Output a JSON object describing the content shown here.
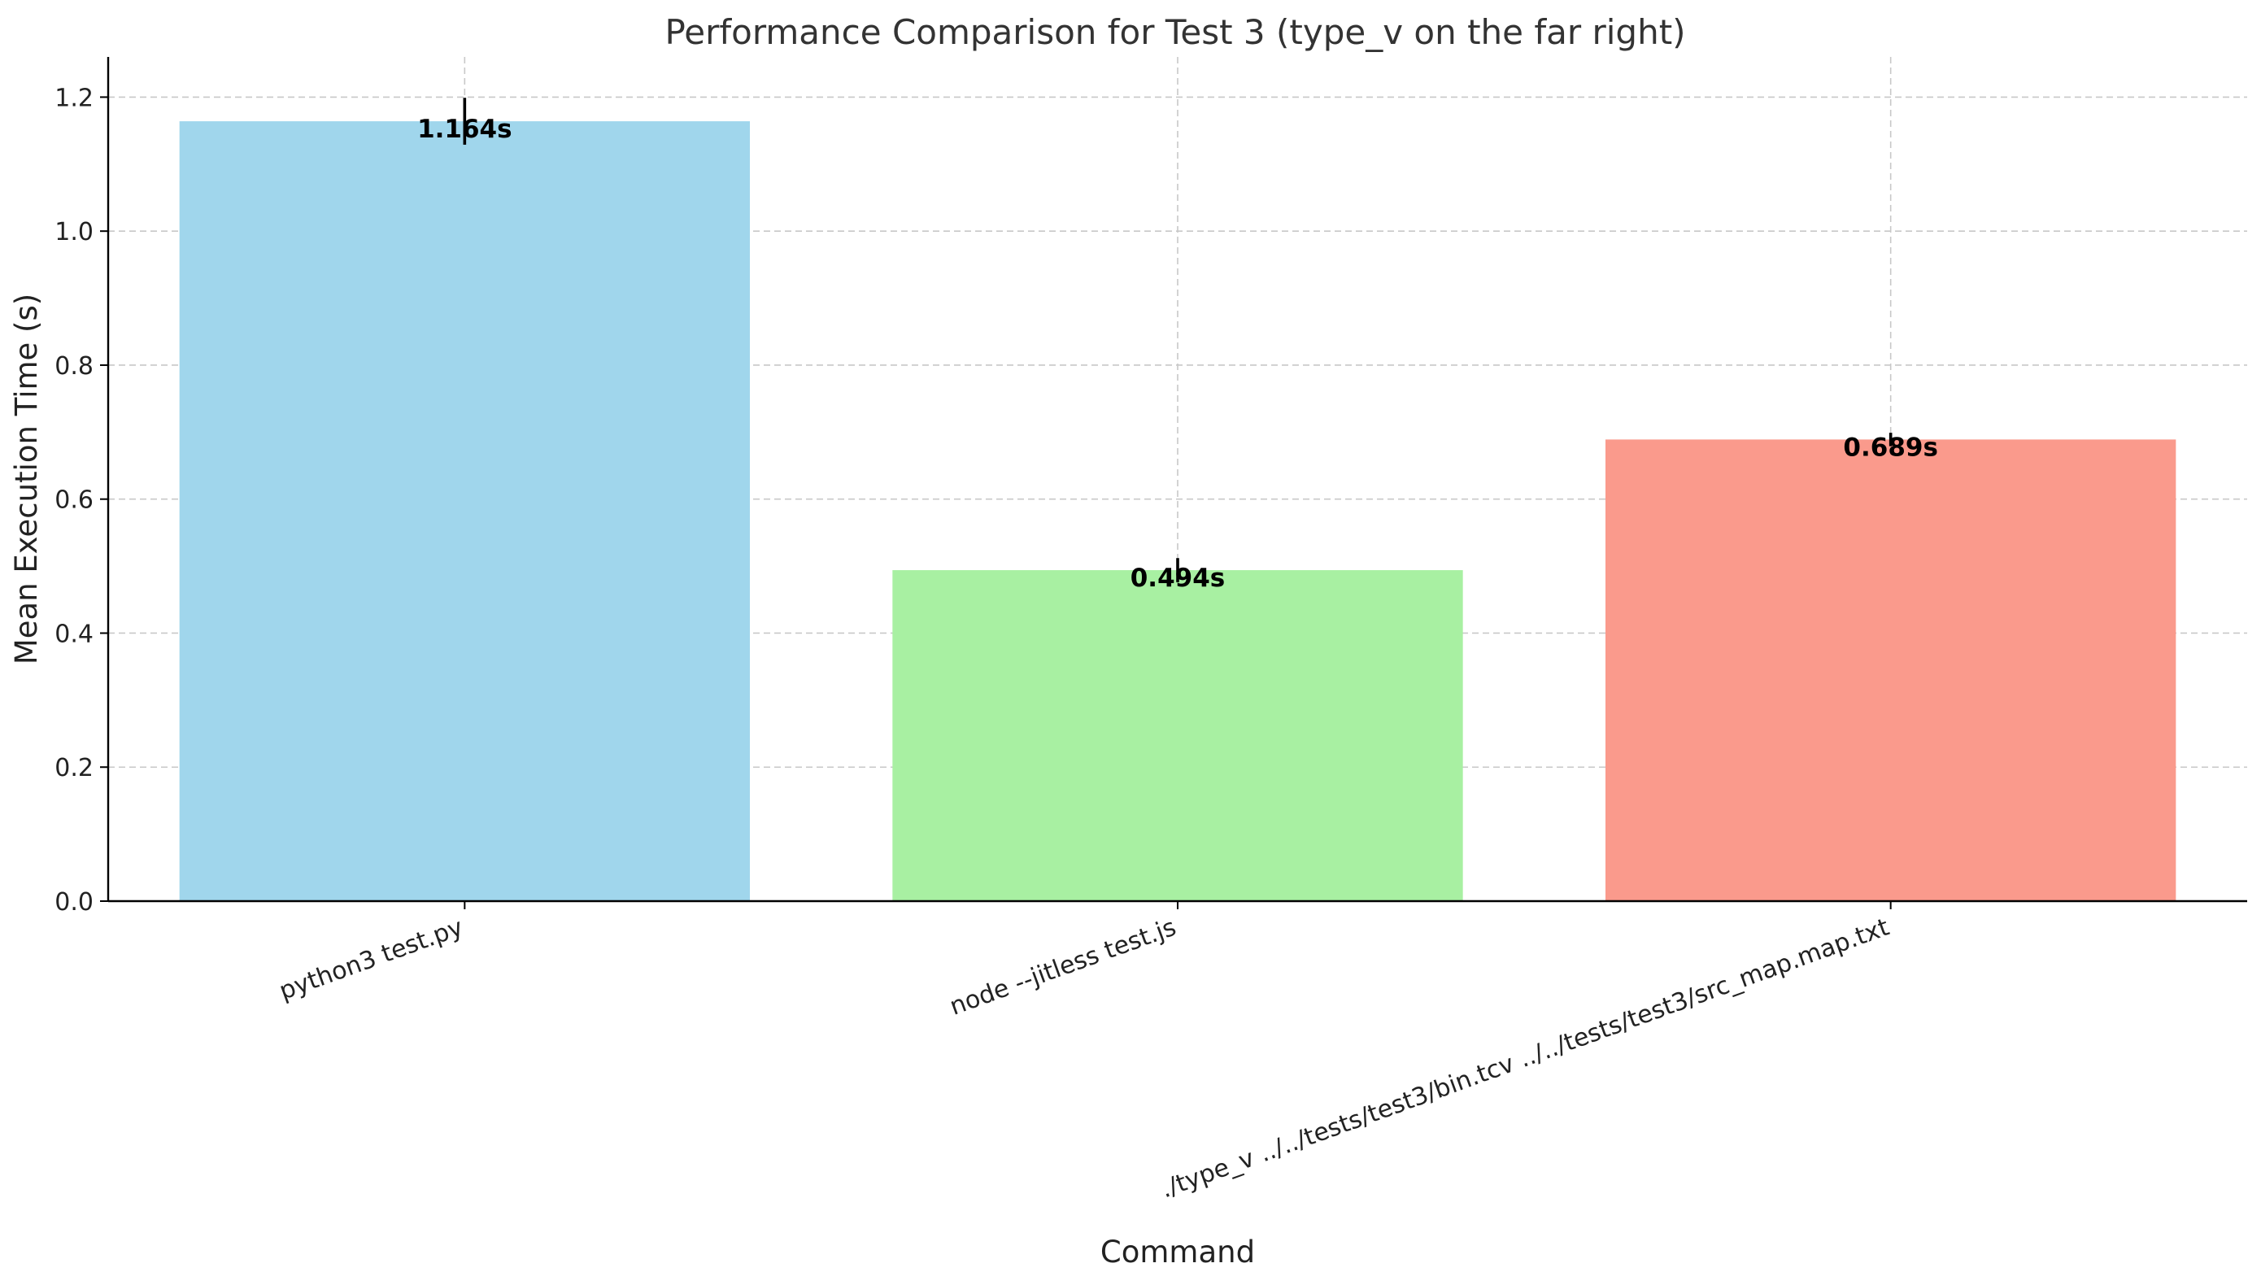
{
  "chart_data": {
    "type": "bar",
    "title": "Performance Comparison for Test 3 (type_v on the far right)",
    "xlabel": "Command",
    "ylabel": "Mean Execution Time (s)",
    "categories": [
      "python3 test.py",
      "node --jitless test.js",
      "./type_v ../../tests/test3/bin.tcv ../../tests/test3/src_map.map.txt"
    ],
    "values": [
      1.164,
      0.494,
      0.689
    ],
    "error": [
      0.035,
      0.018,
      0.01
    ],
    "data_labels": [
      "1.164s",
      "0.494s",
      "0.689s"
    ],
    "colors": [
      "#a0d6ec",
      "#a8f0a2",
      "#fa9a8c"
    ],
    "ylim": [
      0,
      1.26
    ],
    "yticks": [
      0.0,
      0.2,
      0.4,
      0.6,
      0.8,
      1.0,
      1.2
    ],
    "ytick_labels": [
      "0.0",
      "0.2",
      "0.4",
      "0.6",
      "0.8",
      "1.0",
      "1.2"
    ],
    "grid": true,
    "xtick_rotation": 20
  }
}
